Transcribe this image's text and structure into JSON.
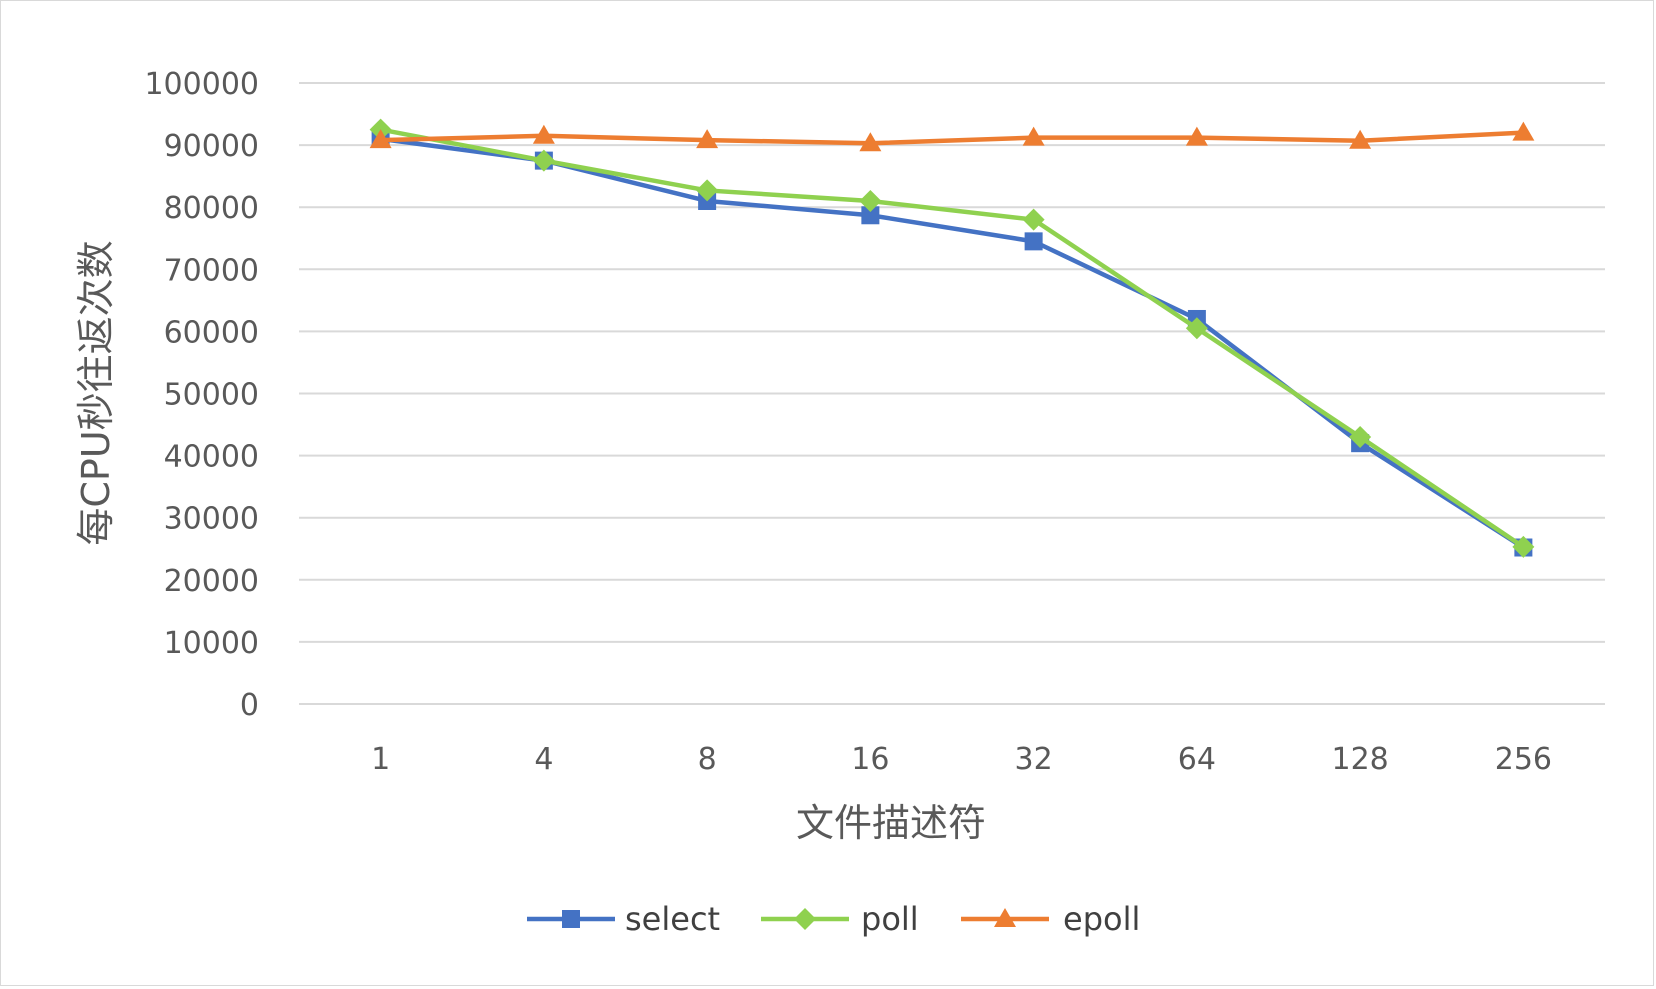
{
  "chart_data": {
    "type": "line",
    "title": "",
    "xlabel": "文件描述符",
    "ylabel": "每CPU秒往返次数",
    "categories": [
      "1",
      "4",
      "8",
      "16",
      "32",
      "64",
      "128",
      "256"
    ],
    "ylim": [
      0,
      100000
    ],
    "yticks": [
      0,
      10000,
      20000,
      30000,
      40000,
      50000,
      60000,
      70000,
      80000,
      90000,
      100000
    ],
    "grid": true,
    "legend_position": "bottom",
    "series": [
      {
        "name": "select",
        "color": "#4472C4",
        "marker": "square",
        "values": [
          91000,
          87500,
          81000,
          78700,
          74500,
          62000,
          42000,
          25200
        ]
      },
      {
        "name": "poll",
        "color": "#8FD14F",
        "marker": "diamond",
        "values": [
          92500,
          87500,
          82700,
          81000,
          78000,
          60500,
          43000,
          25300
        ]
      },
      {
        "name": "epoll",
        "color": "#ED7D31",
        "marker": "triangle",
        "values": [
          90800,
          91500,
          90800,
          90300,
          91200,
          91200,
          90700,
          92000
        ]
      }
    ]
  }
}
